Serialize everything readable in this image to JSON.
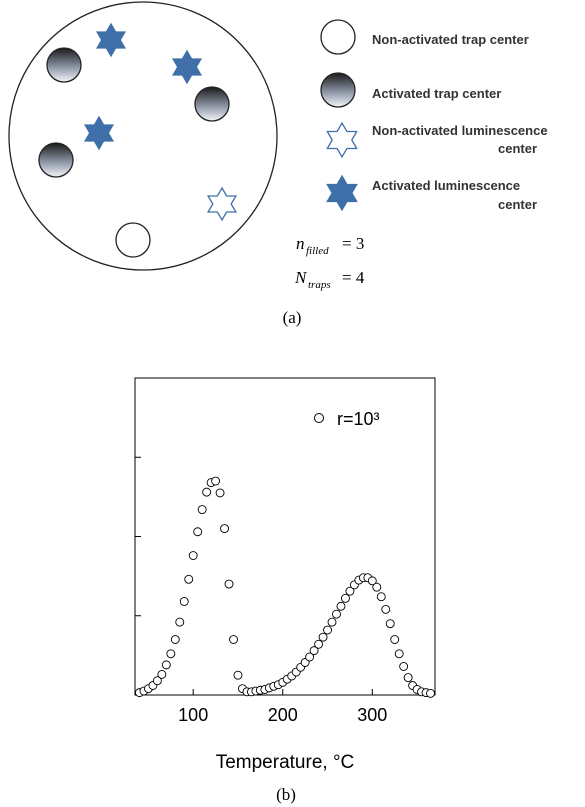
{
  "diagram": {
    "legend": [
      "Non-activated trap center",
      "Activated trap center",
      [
        "Non-activated luminescence",
        "center"
      ],
      [
        "Activated luminescence",
        "center"
      ]
    ],
    "formulas": [
      {
        "symbol": "n",
        "subscript": "filled",
        "relation": "= 3"
      },
      {
        "symbol": "N",
        "subscript": "traps",
        "relation": "= 4"
      }
    ],
    "caption": "(a)"
  },
  "chart_data": {
    "type": "scatter",
    "caption": "(b)",
    "x_label": "Temperature, °C",
    "xlim": [
      35,
      370
    ],
    "xticks": [
      100,
      200,
      300
    ],
    "ylim": [
      0,
      4
    ],
    "yticks": [
      1,
      2,
      3
    ],
    "series": [
      {
        "name": "r=10³",
        "marker": "open-circle",
        "color": "#000000",
        "x": [
          40,
          45,
          50,
          55,
          60,
          65,
          70,
          75,
          80,
          85,
          90,
          95,
          100,
          105,
          110,
          115,
          120,
          125,
          130,
          135,
          140,
          145,
          150,
          155,
          160,
          165,
          170,
          175,
          180,
          185,
          190,
          195,
          200,
          205,
          210,
          215,
          220,
          225,
          230,
          235,
          240,
          245,
          250,
          255,
          260,
          265,
          270,
          275,
          280,
          285,
          290,
          295,
          300,
          305,
          310,
          315,
          320,
          325,
          330,
          335,
          340,
          345,
          350,
          355,
          360,
          365
        ],
        "values": [
          0.03,
          0.05,
          0.08,
          0.12,
          0.18,
          0.26,
          0.38,
          0.52,
          0.7,
          0.92,
          1.18,
          1.46,
          1.76,
          2.06,
          2.34,
          2.56,
          2.68,
          2.7,
          2.55,
          2.1,
          1.4,
          0.7,
          0.25,
          0.08,
          0.04,
          0.04,
          0.05,
          0.06,
          0.07,
          0.09,
          0.11,
          0.13,
          0.16,
          0.2,
          0.24,
          0.29,
          0.35,
          0.41,
          0.48,
          0.56,
          0.64,
          0.73,
          0.82,
          0.92,
          1.02,
          1.12,
          1.22,
          1.31,
          1.39,
          1.45,
          1.48,
          1.48,
          1.44,
          1.36,
          1.24,
          1.08,
          0.9,
          0.7,
          0.52,
          0.36,
          0.22,
          0.12,
          0.07,
          0.04,
          0.03,
          0.02
        ]
      }
    ]
  }
}
